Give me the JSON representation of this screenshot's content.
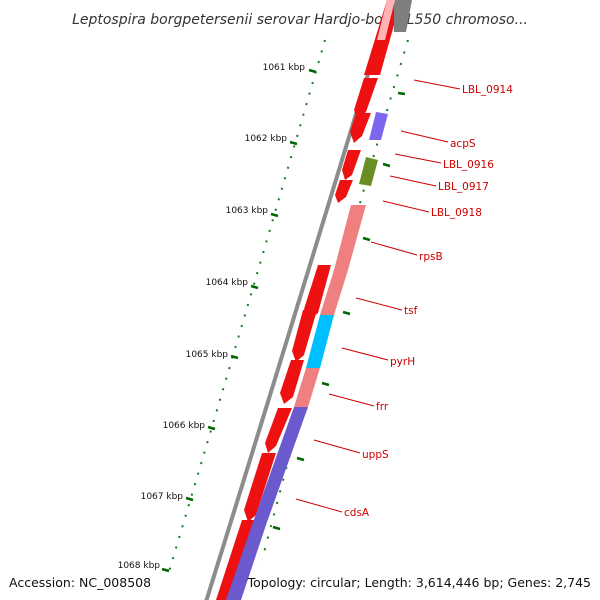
{
  "title": "Leptospira borgpetersenii serovar Hardjo-bovis L550 chromoso...",
  "accession": "Accession: NC_008508",
  "topology": "Topology: circular; Length: 3,614,446 bp; Genes: 2,745",
  "kbp_ticks": [
    {
      "label": "1061 kbp",
      "kbp": 1061
    },
    {
      "label": "1062 kbp",
      "kbp": 1062
    },
    {
      "label": "1063 kbp",
      "kbp": 1063
    },
    {
      "label": "1064 kbp",
      "kbp": 1064
    },
    {
      "label": "1065 kbp",
      "kbp": 1065
    },
    {
      "label": "1066 kbp",
      "kbp": 1066
    },
    {
      "label": "1067 kbp",
      "kbp": 1067
    },
    {
      "label": "1068 kbp",
      "kbp": 1068
    }
  ],
  "genes": [
    {
      "name": "LBL_0914",
      "color": "#ffb3b3"
    },
    {
      "name": "acpS",
      "color": "#7b68ee"
    },
    {
      "name": "LBL_0916",
      "color": "#ffb3b3"
    },
    {
      "name": "LBL_0917",
      "color": "#6b8e23"
    },
    {
      "name": "LBL_0918",
      "color": "#ffb3b3"
    },
    {
      "name": "rpsB",
      "color": "#f08080"
    },
    {
      "name": "tsf",
      "color": "#f08080"
    },
    {
      "name": "pyrH",
      "color": "#00bfff"
    },
    {
      "name": "frr",
      "color": "#f08080"
    },
    {
      "name": "uppS",
      "color": "#6a5acd"
    },
    {
      "name": "cdsA",
      "color": "#6a5acd"
    }
  ],
  "colors": {
    "backbone": "#808080",
    "forward_cds": "#ee0000",
    "tick_major": "#006600",
    "gc_dots": "#008000",
    "label_text": "#cc0000"
  }
}
